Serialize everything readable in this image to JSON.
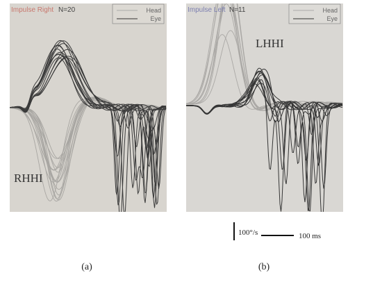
{
  "panels": [
    {
      "header_title": "Impulse Right",
      "count": "N=20",
      "legend": [
        "Head",
        "Eye"
      ],
      "label": "RHHI",
      "caption": "(a)"
    },
    {
      "header_title": "Impulse Left",
      "count": "N=11",
      "legend": [
        "Head",
        "Eye"
      ],
      "label": "LHHI",
      "caption": "(b)"
    }
  ],
  "scale_bar": {
    "velocity": "100°/s",
    "time": "100 ms"
  }
}
